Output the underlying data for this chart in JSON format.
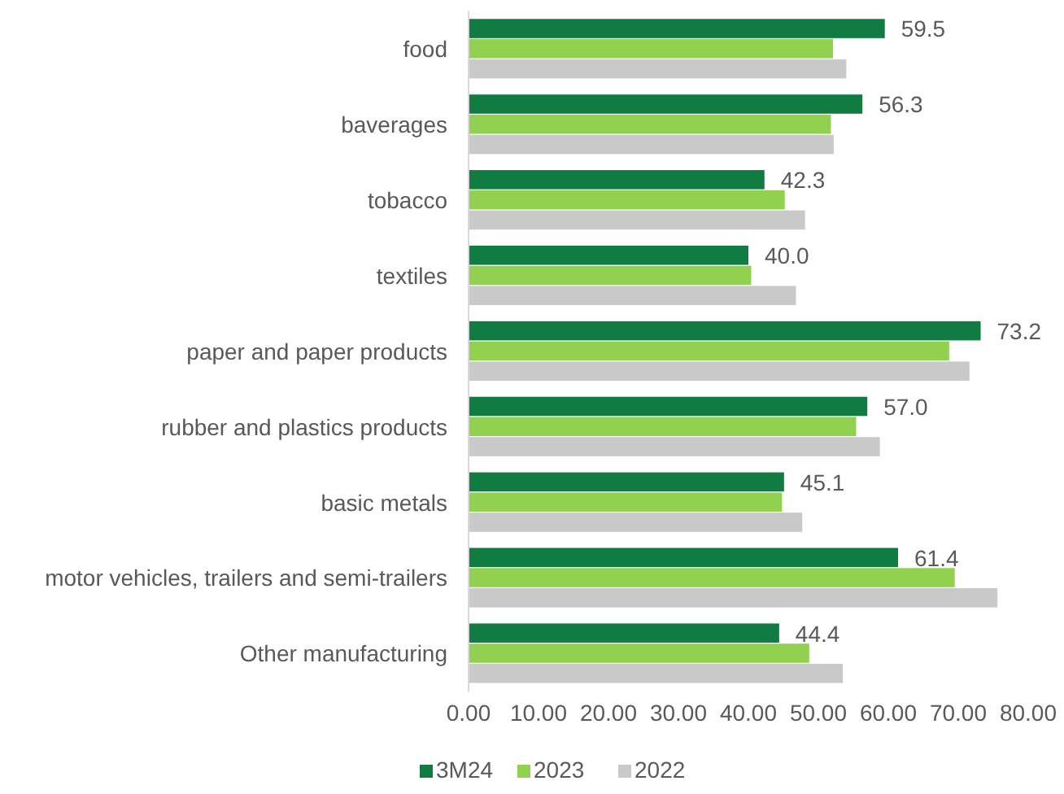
{
  "chart_data": {
    "type": "bar",
    "orientation": "horizontal",
    "categories": [
      "food",
      "baverages",
      "tobacco",
      "textiles",
      "paper and paper products",
      "rubber and plastics products",
      "basic metals",
      "motor vehicles, trailers and semi-trailers",
      "Other manufacturing"
    ],
    "series": [
      {
        "name": "3M24",
        "color": "#107c41",
        "values": [
          59.5,
          56.3,
          42.3,
          40.0,
          73.2,
          57.0,
          45.1,
          61.4,
          44.4
        ],
        "value_labels": [
          "59.5",
          "56.3",
          "42.3",
          "40.0",
          "73.2",
          "57.0",
          "45.1",
          "61.4",
          "44.4"
        ]
      },
      {
        "name": "2023",
        "color": "#92d050",
        "values": [
          52.1,
          51.8,
          45.2,
          40.4,
          68.7,
          55.4,
          44.8,
          69.5,
          48.7
        ]
      },
      {
        "name": "2022",
        "color": "#c9c9c9",
        "values": [
          54.0,
          52.2,
          48.1,
          46.8,
          71.6,
          58.8,
          47.7,
          75.6,
          53.5
        ]
      }
    ],
    "xlim": [
      0,
      80
    ],
    "xticks": [
      {
        "value": 0,
        "label": "0.00"
      },
      {
        "value": 10,
        "label": "10.00"
      },
      {
        "value": 20,
        "label": "20.00"
      },
      {
        "value": 30,
        "label": "30.00"
      },
      {
        "value": 40,
        "label": "40.00"
      },
      {
        "value": 50,
        "label": "50.00"
      },
      {
        "value": 60,
        "label": "60.00"
      },
      {
        "value": 70,
        "label": "70.00"
      },
      {
        "value": 80,
        "label": "80.00"
      }
    ],
    "grid": false,
    "legend": "bottom"
  }
}
